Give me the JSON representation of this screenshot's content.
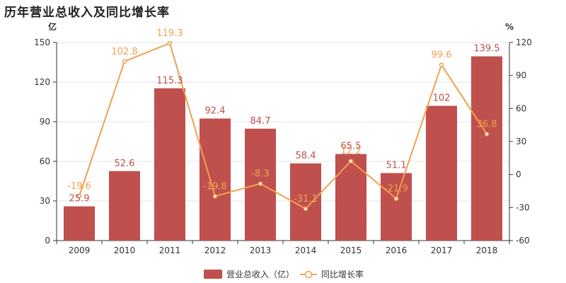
{
  "title": "历年营业总收入及同比增长率",
  "chart_data": {
    "type": "bar",
    "categories": [
      "2009",
      "2010",
      "2011",
      "2012",
      "2013",
      "2014",
      "2015",
      "2016",
      "2017",
      "2018"
    ],
    "series": [
      {
        "name": "营业总收入（亿）",
        "type": "bar",
        "axis": "left",
        "color": "#c0504d",
        "values": [
          25.9,
          52.6,
          115.3,
          92.4,
          84.7,
          58.4,
          65.5,
          51.1,
          102,
          139.5
        ]
      },
      {
        "name": "同比增长率",
        "type": "line",
        "axis": "right",
        "color": "#f0a050",
        "values": [
          -19.6,
          102.8,
          119.3,
          -19.8,
          -8.3,
          -31.1,
          12.2,
          -21.9,
          99.6,
          36.8
        ]
      }
    ],
    "y_left": {
      "unit": "亿",
      "min": 0,
      "max": 150,
      "ticks": [
        0,
        30,
        60,
        90,
        120,
        150
      ]
    },
    "y_right": {
      "unit": "%",
      "min": -60,
      "max": 120,
      "ticks": [
        -60,
        -30,
        0,
        30,
        60,
        90,
        120
      ]
    },
    "legend_position": "bottom",
    "grid": true
  }
}
